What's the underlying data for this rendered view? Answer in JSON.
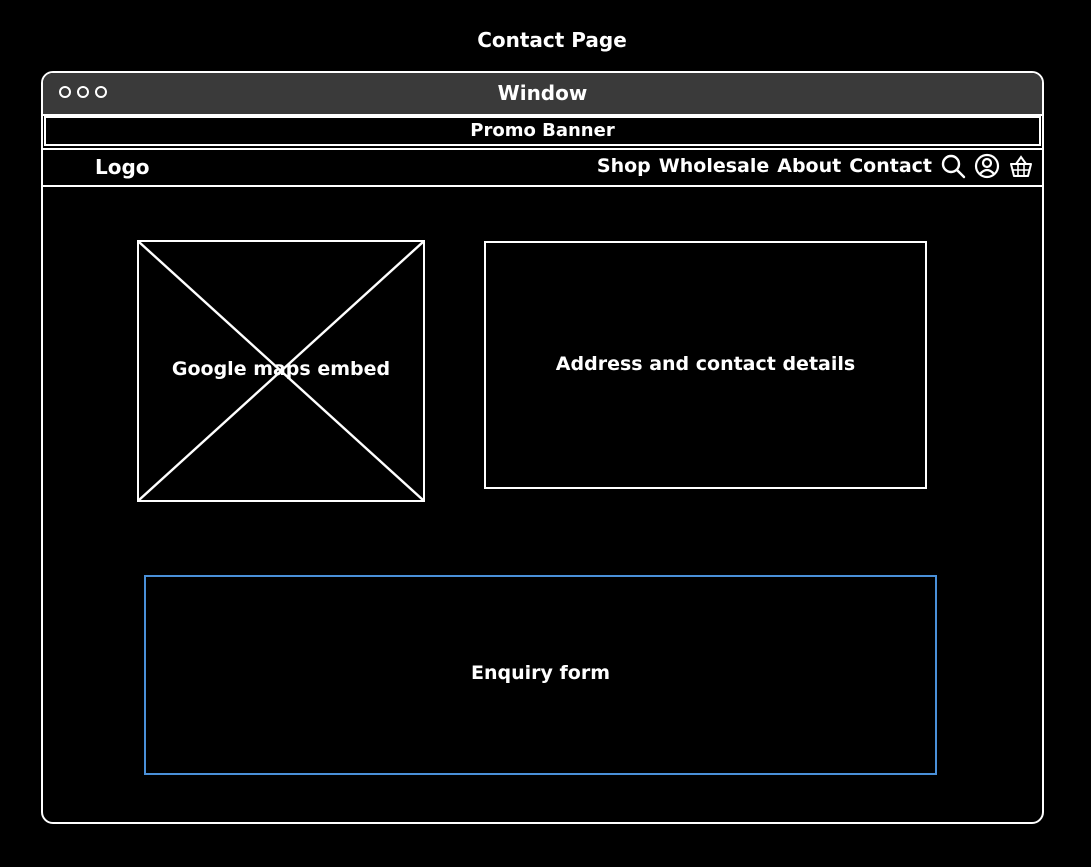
{
  "page": {
    "title": "Contact Page"
  },
  "window": {
    "title": "Window"
  },
  "promo": {
    "label": "Promo Banner"
  },
  "nav": {
    "logo": "Logo",
    "links": [
      "Shop",
      "Wholesale",
      "About",
      "Contact"
    ],
    "icons": [
      "search-icon",
      "user-icon",
      "basket-icon"
    ]
  },
  "content": {
    "map_label": "Google maps embed",
    "address_label": "Address and contact details",
    "form_label": "Enquiry form"
  },
  "colors": {
    "background": "#000000",
    "stroke": "#ffffff",
    "titlebar": "#3a3a3a",
    "form_border": "#4a90d9"
  }
}
